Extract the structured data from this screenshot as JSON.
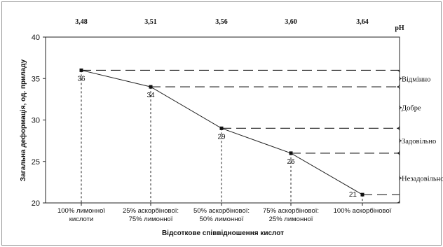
{
  "chart_data": {
    "type": "line",
    "xlabel": "Відсоткове співвідношення кислот",
    "ylabel": "Загальна деформація, од. приладу",
    "ylim": [
      20,
      40
    ],
    "yticks": [
      "20",
      "25",
      "30",
      "35",
      "40"
    ],
    "categories": [
      [
        "100% лимонної",
        "кислоти"
      ],
      [
        "25% аскорбінової:",
        "75% лимонної"
      ],
      [
        "50% аскорбінової:",
        "50% лимонної"
      ],
      [
        "75% аскорбінової:",
        "25% лимонної"
      ],
      [
        "100% аскорбінової"
      ]
    ],
    "top_axis_label": "pH",
    "top_axis_values": [
      "3,48",
      "3,51",
      "3,56",
      "3,60",
      "3,64"
    ],
    "values": [
      36,
      34,
      29,
      26,
      21
    ],
    "data_labels": [
      "36",
      "34",
      "29",
      "26",
      "21"
    ],
    "quality_bands": [
      {
        "label": "Відмінно",
        "from": 34,
        "to": 36
      },
      {
        "label": "Добре",
        "from": 29,
        "to": 34
      },
      {
        "label": "Задовільно",
        "from": 26,
        "to": 29
      },
      {
        "label": "Незадовільно",
        "from": 20,
        "to": 26
      }
    ],
    "grid": false
  }
}
